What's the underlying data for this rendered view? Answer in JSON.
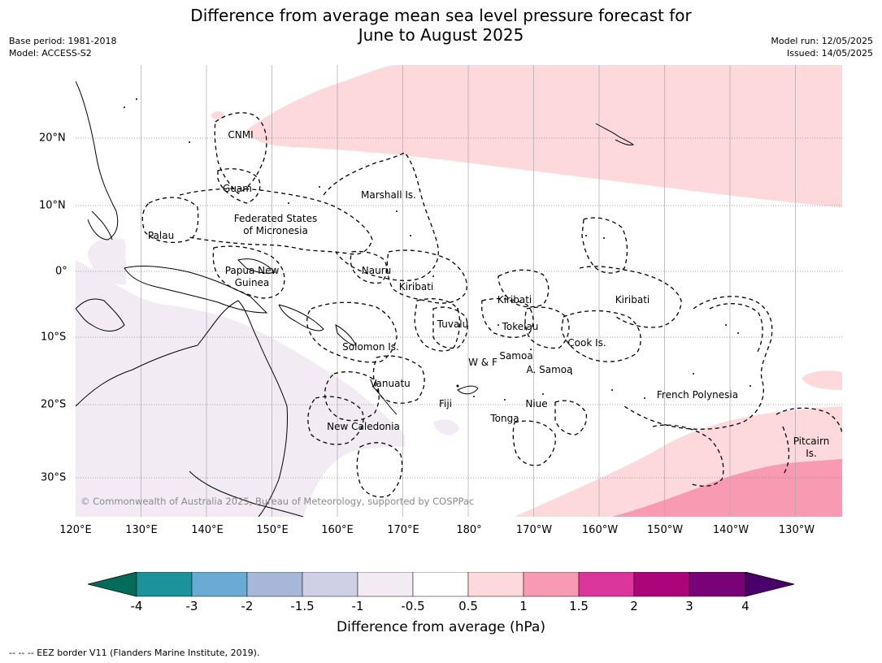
{
  "title_line1": "Difference from average mean sea level pressure forecast for",
  "title_line2": "June to August 2025",
  "meta_left": [
    "Base period: 1981-2018",
    "Model: ACCESS-S2"
  ],
  "meta_right": [
    "Model run: 12/05/2025",
    "Issued: 14/05/2025"
  ],
  "longitude_labels": [
    "120°E",
    "130°E",
    "140°E",
    "150°E",
    "160°E",
    "170°E",
    "180°",
    "170°W",
    "160°W",
    "150°W",
    "140°W",
    "130°W"
  ],
  "latitude_labels": [
    "20°N",
    "10°N",
    "0°",
    "10°S",
    "20°S",
    "30°S"
  ],
  "places": [
    "CNMI",
    "Guam",
    "Marshall Is.",
    "Palau",
    "Federated States",
    "of Micronesia",
    "Papua New",
    "Guinea",
    "Nauru",
    "Kiribati",
    "Kiribati",
    "Kiribati",
    "Tuvalu",
    "Tokelau",
    "Cook Is.",
    "Solomon Is.",
    "W & F",
    "Samoa",
    "A. Samoa",
    "Vanuatu",
    "Fiji",
    "Niue",
    "Tonga",
    "French Polynesia",
    "New Caledonia",
    "Pitcairn",
    "Is."
  ],
  "copyright": "© Commonwealth of Australia 2025, Bureau of Meteorology, supported by COSPPac",
  "colorbar": {
    "ticks": [
      "-4",
      "-3",
      "-2",
      "-1.5",
      "-1",
      "-0.5",
      "0.5",
      "1",
      "1.5",
      "2",
      "3",
      "4"
    ],
    "colors": [
      "#1a9399",
      "#6aabd4",
      "#a6b7d9",
      "#cfcfe6",
      "#f2ebf4",
      "#ffffff",
      "#fdd9dc",
      "#f99ab3",
      "#dc369a",
      "#ad0579",
      "#7a0277"
    ],
    "under_color": "#016c59",
    "over_color": "#49006a",
    "title": "Difference from average (hPa)"
  },
  "footnote": "-- -- -- EEZ border V11 (Flanders Marine Institute, 2019)."
}
